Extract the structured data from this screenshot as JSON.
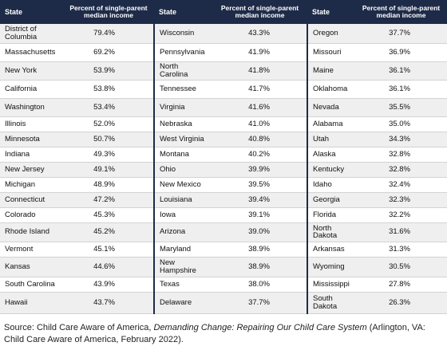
{
  "headers": {
    "state": "State",
    "percent": "Percent of single-parent median income"
  },
  "columns": [
    [
      {
        "state": "District of Columbia",
        "pct": "79.4%"
      },
      {
        "state": "Massachusetts",
        "pct": "69.2%"
      },
      {
        "state": "New York",
        "pct": "53.9%"
      },
      {
        "state": "California",
        "pct": "53.8%"
      },
      {
        "state": "Washington",
        "pct": "53.4%"
      },
      {
        "state": "Illinois",
        "pct": "52.0%"
      },
      {
        "state": "Minnesota",
        "pct": "50.7%"
      },
      {
        "state": "Indiana",
        "pct": "49.3%"
      },
      {
        "state": "New Jersey",
        "pct": "49.1%"
      },
      {
        "state": "Michigan",
        "pct": "48.9%"
      },
      {
        "state": "Connecticut",
        "pct": "47.2%"
      },
      {
        "state": "Colorado",
        "pct": "45.3%"
      },
      {
        "state": "Rhode Island",
        "pct": "45.2%"
      },
      {
        "state": "Vermont",
        "pct": "45.1%"
      },
      {
        "state": "Kansas",
        "pct": "44.6%"
      },
      {
        "state": "South Carolina",
        "pct": "43.9%"
      },
      {
        "state": "Hawaii",
        "pct": "43.7%"
      }
    ],
    [
      {
        "state": "Wisconsin",
        "pct": "43.3%"
      },
      {
        "state": "Pennsylvania",
        "pct": "41.9%"
      },
      {
        "state": "North Carolina",
        "pct": "41.8%"
      },
      {
        "state": "Tennessee",
        "pct": "41.7%"
      },
      {
        "state": "Virginia",
        "pct": "41.6%"
      },
      {
        "state": "Nebraska",
        "pct": "41.0%"
      },
      {
        "state": "West Virginia",
        "pct": "40.8%"
      },
      {
        "state": "Montana",
        "pct": "40.2%"
      },
      {
        "state": "Ohio",
        "pct": "39.9%"
      },
      {
        "state": "New Mexico",
        "pct": "39.5%"
      },
      {
        "state": "Louisiana",
        "pct": "39.4%"
      },
      {
        "state": "Iowa",
        "pct": "39.1%"
      },
      {
        "state": "Arizona",
        "pct": "39.0%"
      },
      {
        "state": "Maryland",
        "pct": "38.9%"
      },
      {
        "state": "New Hampshire",
        "pct": "38.9%"
      },
      {
        "state": "Texas",
        "pct": "38.0%"
      },
      {
        "state": "Delaware",
        "pct": "37.7%"
      }
    ],
    [
      {
        "state": "Oregon",
        "pct": "37.7%"
      },
      {
        "state": "Missouri",
        "pct": "36.9%"
      },
      {
        "state": "Maine",
        "pct": "36.1%"
      },
      {
        "state": "Oklahoma",
        "pct": "36.1%"
      },
      {
        "state": "Nevada",
        "pct": "35.5%"
      },
      {
        "state": "Alabama",
        "pct": "35.0%"
      },
      {
        "state": "Utah",
        "pct": "34.3%"
      },
      {
        "state": "Alaska",
        "pct": "32.8%"
      },
      {
        "state": "Kentucky",
        "pct": "32.8%"
      },
      {
        "state": "Idaho",
        "pct": "32.4%"
      },
      {
        "state": "Georgia",
        "pct": "32.3%"
      },
      {
        "state": "Florida",
        "pct": "32.2%"
      },
      {
        "state": "North Dakota",
        "pct": "31.6%"
      },
      {
        "state": "Arkansas",
        "pct": "31.3%"
      },
      {
        "state": "Wyoming",
        "pct": "30.5%"
      },
      {
        "state": "Mississippi",
        "pct": "27.8%"
      },
      {
        "state": "South Dakota",
        "pct": "26.3%"
      }
    ]
  ],
  "source": {
    "prefix": "Source: Child Care Aware of America, ",
    "title": "Demanding Change: Repairing Our Child Care System",
    "suffix": " (Arlington, VA: Child Care Aware of America, February 2022)."
  }
}
